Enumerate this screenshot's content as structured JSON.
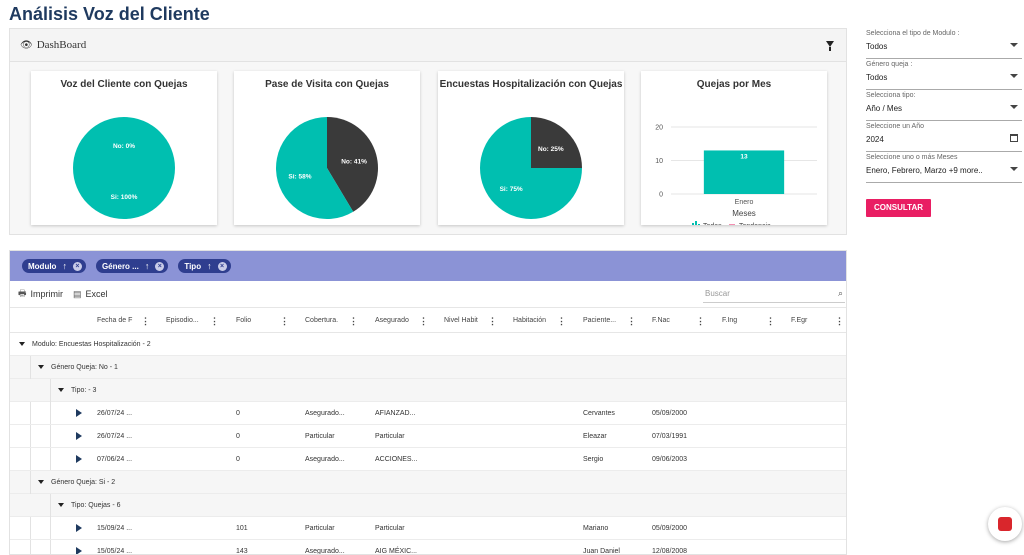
{
  "title": "Análisis Voz del Cliente",
  "dashboard": {
    "header_label": "DashBoard",
    "cards": [
      {
        "title": "Voz del Cliente con Quejas",
        "slices": [
          {
            "label": "No: 0%",
            "value": 0,
            "color": "#3a3a3a"
          },
          {
            "label": "Si: 100%",
            "value": 100,
            "color": "#00bfb0"
          }
        ]
      },
      {
        "title": "Pase de Visita con Quejas",
        "slices": [
          {
            "label": "No: 41%",
            "value": 41,
            "color": "#3a3a3a"
          },
          {
            "label": "Si: 58%",
            "value": 58,
            "color": "#00bfb0"
          }
        ]
      },
      {
        "title": "Encuestas Hospitalización con Quejas",
        "slices": [
          {
            "label": "No: 25%",
            "value": 25,
            "color": "#3a3a3a"
          },
          {
            "label": "Si: 75%",
            "value": 75,
            "color": "#00bfb0"
          }
        ]
      }
    ],
    "bar_card": {
      "title": "Quejas por Mes",
      "xlabel": "Meses",
      "legend": [
        "Todas",
        "Tendencia"
      ]
    }
  },
  "chart_data": {
    "type": "bar",
    "title": "Quejas por Mes",
    "categories": [
      "Enero"
    ],
    "values": [
      13
    ],
    "xlabel": "Meses",
    "ylabel": "",
    "ylim": [
      0,
      20
    ],
    "yticks": [
      0,
      10,
      20
    ],
    "legend": [
      "Todas",
      "Tendencia"
    ],
    "color": "#00bfb0"
  },
  "grouping": {
    "chips": [
      "Modulo",
      "Género ...",
      "Tipo"
    ],
    "chip_arrow": "↑",
    "chip_close": "×"
  },
  "toolbar": {
    "print_label": "Imprimir",
    "excel_label": "Excel",
    "search_placeholder": "Buscar"
  },
  "columns": [
    "Fecha de F",
    "Episodio...",
    "Folio",
    "Cobertura.",
    "Asegurado",
    "Nivel Habit",
    "Habitación",
    "Paciente...",
    "F.Nac",
    "F.Ing",
    "F.Egr"
  ],
  "groups": {
    "modulo": "Modulo: Encuestas Hospitalización - 2",
    "genero_no": "Género Queja: No - 1",
    "tipo_no": "Tipo: - 3",
    "genero_si": "Género Queja: Si - 2",
    "tipo_si": "Tipo: Quejas - 6"
  },
  "rows_no": [
    {
      "fecha": "26/07/24 ...",
      "folio": "0",
      "cobertura": "Asegurado...",
      "asegurado": "AFIANZAD...",
      "paciente": "Cervantes",
      "fnac": "05/09/2000"
    },
    {
      "fecha": "26/07/24 ...",
      "folio": "0",
      "cobertura": "Particular",
      "asegurado": "Particular",
      "paciente": "Eleazar",
      "fnac": "07/03/1991"
    },
    {
      "fecha": "07/06/24 ...",
      "folio": "0",
      "cobertura": "Asegurado...",
      "asegurado": "ACCIONES...",
      "paciente": "Sergio",
      "fnac": "09/06/2003"
    }
  ],
  "rows_si": [
    {
      "fecha": "15/09/24 ...",
      "folio": "101",
      "cobertura": "Particular",
      "asegurado": "Particular",
      "paciente": "Mariano",
      "fnac": "05/09/2000"
    },
    {
      "fecha": "15/05/24 ...",
      "folio": "143",
      "cobertura": "Asegurado...",
      "asegurado": "AIG MÉXIC...",
      "paciente": "Juan Daniel",
      "fnac": "12/08/2008"
    }
  ],
  "sidebar": {
    "fields": [
      {
        "label": "Selecciona el tipo de Modulo :",
        "value": "Todos",
        "kind": "dropdown"
      },
      {
        "label": "Género queja :",
        "value": "Todos",
        "kind": "dropdown"
      },
      {
        "label": "Selecciona tipo:",
        "value": "Año / Mes",
        "kind": "dropdown"
      },
      {
        "label": "Seleccione un Año",
        "value": "2024",
        "kind": "date"
      },
      {
        "label": "Seleccione uno o más Meses",
        "value": "Enero, Febrero, Marzo  +9 more..",
        "kind": "dropdown"
      }
    ],
    "button_label": "CONSULTAR"
  }
}
